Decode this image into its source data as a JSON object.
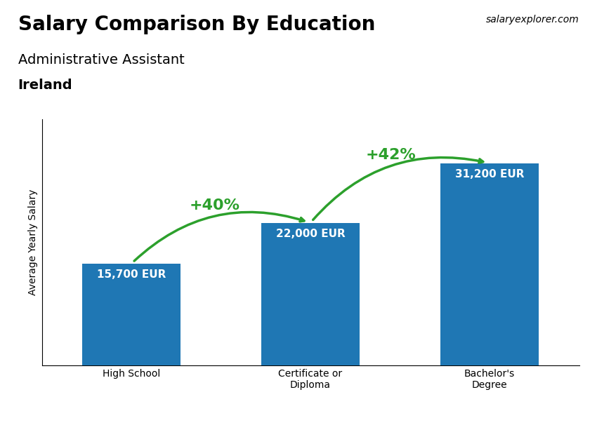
{
  "chart_data": {
    "type": "bar",
    "title": "Salary Comparison By Education",
    "subtitle": "Administrative Assistant",
    "country": "Ireland",
    "source": "salaryexplorer.com",
    "ylabel": "Average Yearly Salary",
    "categories": [
      "High School",
      "Certificate or\nDiploma",
      "Bachelor's\nDegree"
    ],
    "values": [
      15700,
      22000,
      31200
    ],
    "value_labels": [
      "15,700 EUR",
      "22,000 EUR",
      "31,200 EUR"
    ],
    "data_labels": true,
    "annotations": [
      {
        "text": "+40%",
        "from": "High School",
        "to": "Certificate or\nDiploma"
      },
      {
        "text": "+42%",
        "from": "Certificate or\nDiploma",
        "to": "Bachelor's\nDegree"
      }
    ],
    "ylim": [
      0,
      38000
    ],
    "tick_labels": "x",
    "grid": false
  }
}
